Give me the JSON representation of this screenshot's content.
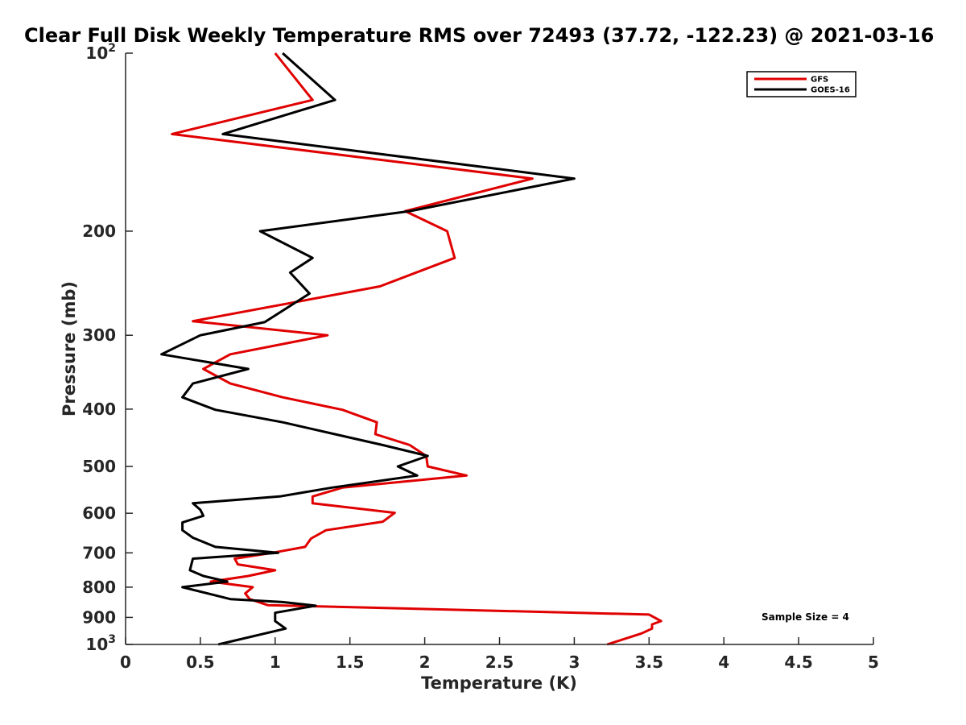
{
  "chart_data": {
    "type": "line",
    "title": "Clear Full Disk Weekly Temperature RMS over 72493 (37.72, -122.23) @ 2021-03-16",
    "xlabel": "Temperature (K)",
    "ylabel": "Pressure (mb)",
    "xlim": [
      0,
      5
    ],
    "ylim": [
      1000,
      100
    ],
    "yscale": "log",
    "y_reversed": true,
    "x_ticks": [
      0,
      0.5,
      1,
      1.5,
      2,
      2.5,
      3,
      3.5,
      4,
      4.5,
      5
    ],
    "x_tick_labels": [
      "0",
      "0.5",
      "1",
      "1.5",
      "2",
      "2.5",
      "3",
      "3.5",
      "4",
      "4.5",
      "5"
    ],
    "y_ticks": [
      100,
      200,
      300,
      400,
      500,
      600,
      700,
      800,
      900,
      1000
    ],
    "y_tick_labels": [
      {
        "base": "10",
        "exp": "2"
      },
      {
        "base": "200",
        "exp": ""
      },
      {
        "base": "300",
        "exp": ""
      },
      {
        "base": "400",
        "exp": ""
      },
      {
        "base": "500",
        "exp": ""
      },
      {
        "base": "600",
        "exp": ""
      },
      {
        "base": "700",
        "exp": ""
      },
      {
        "base": "800",
        "exp": ""
      },
      {
        "base": "900",
        "exp": ""
      },
      {
        "base": "10",
        "exp": "3"
      }
    ],
    "grid": false,
    "legend_position": "top-right",
    "annotation": "Sample Size = 4",
    "series": [
      {
        "name": "GFS",
        "color": "#e00000",
        "points": [
          [
            1.0,
            100
          ],
          [
            1.25,
            120
          ],
          [
            0.31,
            137
          ],
          [
            2.72,
            163
          ],
          [
            1.87,
            185
          ],
          [
            2.15,
            200
          ],
          [
            2.2,
            222
          ],
          [
            1.7,
            248
          ],
          [
            0.45,
            284
          ],
          [
            1.35,
            300
          ],
          [
            0.7,
            323
          ],
          [
            0.52,
            342
          ],
          [
            0.7,
            362
          ],
          [
            1.05,
            382
          ],
          [
            1.45,
            401
          ],
          [
            1.68,
            421
          ],
          [
            1.67,
            441
          ],
          [
            1.9,
            460
          ],
          [
            2.01,
            480
          ],
          [
            2.02,
            500
          ],
          [
            2.28,
            518
          ],
          [
            1.45,
            543
          ],
          [
            1.25,
            562
          ],
          [
            1.25,
            577
          ],
          [
            1.8,
            599
          ],
          [
            1.72,
            620
          ],
          [
            1.34,
            641
          ],
          [
            1.24,
            662
          ],
          [
            1.2,
            684
          ],
          [
            0.98,
            700
          ],
          [
            0.73,
            716
          ],
          [
            0.75,
            732
          ],
          [
            1.0,
            749
          ],
          [
            0.82,
            766
          ],
          [
            0.57,
            783
          ],
          [
            0.85,
            800
          ],
          [
            0.8,
            820
          ],
          [
            0.83,
            838
          ],
          [
            0.95,
            858
          ],
          [
            3.5,
            890
          ],
          [
            3.58,
            913
          ],
          [
            3.52,
            925
          ],
          [
            3.52,
            940
          ],
          [
            3.45,
            958
          ],
          [
            3.22,
            1000
          ]
        ]
      },
      {
        "name": "GOES-16",
        "color": "#000000",
        "points": [
          [
            1.05,
            100
          ],
          [
            1.4,
            120
          ],
          [
            0.65,
            137
          ],
          [
            3.0,
            163
          ],
          [
            1.9,
            185
          ],
          [
            0.9,
            200
          ],
          [
            1.25,
            222
          ],
          [
            1.1,
            235
          ],
          [
            1.23,
            255
          ],
          [
            0.93,
            285
          ],
          [
            0.5,
            300
          ],
          [
            0.24,
            323
          ],
          [
            0.82,
            342
          ],
          [
            0.45,
            362
          ],
          [
            0.38,
            382
          ],
          [
            0.6,
            401
          ],
          [
            1.05,
            421
          ],
          [
            1.4,
            441
          ],
          [
            1.72,
            460
          ],
          [
            2.02,
            480
          ],
          [
            1.82,
            500
          ],
          [
            1.95,
            518
          ],
          [
            1.38,
            543
          ],
          [
            1.03,
            562
          ],
          [
            0.45,
            577
          ],
          [
            0.5,
            592
          ],
          [
            0.52,
            606
          ],
          [
            0.38,
            622
          ],
          [
            0.38,
            641
          ],
          [
            0.45,
            660
          ],
          [
            0.6,
            684
          ],
          [
            1.02,
            700
          ],
          [
            0.45,
            716
          ],
          [
            0.43,
            749
          ],
          [
            0.52,
            766
          ],
          [
            0.68,
            783
          ],
          [
            0.38,
            800
          ],
          [
            0.7,
            838
          ],
          [
            1.05,
            848
          ],
          [
            1.27,
            860
          ],
          [
            1.0,
            884
          ],
          [
            1.0,
            913
          ],
          [
            1.07,
            940
          ],
          [
            0.62,
            1000
          ]
        ]
      }
    ]
  }
}
